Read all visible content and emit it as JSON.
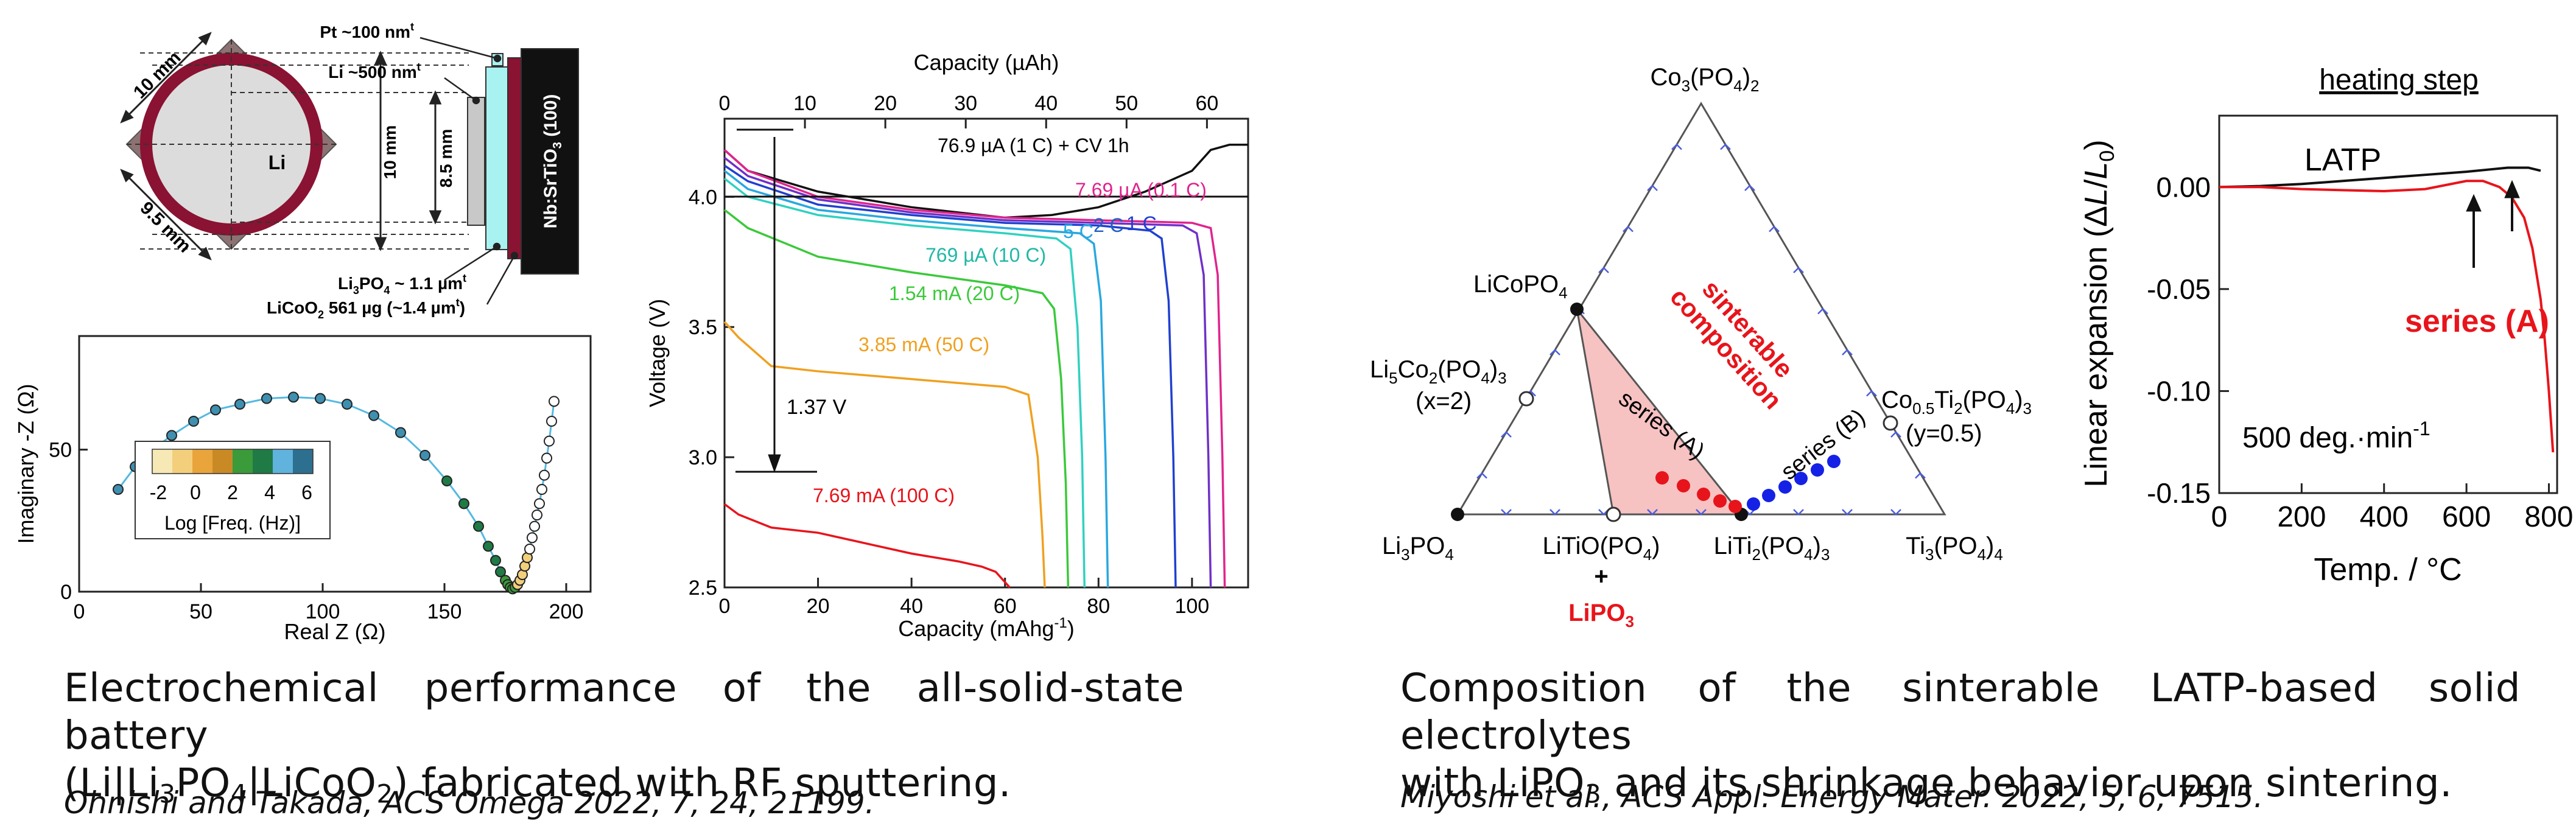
{
  "panel_a": {
    "pt_label": "Pt ~100 nm",
    "pt_sup": "t",
    "li_thick_label": "Li ~500 nm",
    "li_thick_sup": "t",
    "dim_10mm_top": "10 mm",
    "dim_9_5mm": "9.5 mm",
    "li_center": "Li",
    "dim_10mm_side": "10 mm",
    "dim_8_5mm": "8.5 mm",
    "substrate_label": "Nb:SrTiO",
    "substrate_sub": "3",
    "substrate_suffix": " (100)",
    "lipo_label_a": "Li",
    "lipo_label_sub1": "3",
    "lipo_label_b": "PO",
    "lipo_label_sub2": "4",
    "lipo_label_c": " ~ 1.1 µm",
    "lipo_label_sup": "t",
    "licoo_a": "LiCoO",
    "licoo_sub": "2",
    "licoo_b": " 561 µg (~1.4 µm",
    "licoo_sup": "t",
    "licoo_c": ")"
  },
  "nyquist": {
    "ylabel": "Imaginary -Z  (Ω)",
    "xlabel": "Real Z (Ω)",
    "legend_title": "Log [Freq. (Hz)]",
    "legend_ticks": [
      "-2",
      "0",
      "2",
      "4",
      "6"
    ],
    "legend_colors": [
      "#f6e9b5",
      "#f3cf7c",
      "#e9a43c",
      "#c98a26",
      "#3b9a3a",
      "#1f7a45",
      "#5fb3dd",
      "#2d6f8f"
    ],
    "marker_color": "#3f8fb0",
    "fit_color": "#55b9e0"
  },
  "discharge": {
    "top_xlabel": "Capacity (µAh)",
    "xlabel_a": "Capacity (mAhg",
    "xlabel_sup": "-1",
    "xlabel_c": ")",
    "ylabel": "Voltage (V)",
    "ann_cv": "76.9 µA (1 C) + CV 1h",
    "ann_01c": "7.69 µA (0.1 C)",
    "ann_5c": "5 C",
    "ann_2c": "2 C",
    "ann_1c": "1 C",
    "ann_10c": "769 µA (10 C)",
    "ann_20c": "1.54 mA (20 C)",
    "ann_50c": "3.85 mA (50 C)",
    "ann_100c": "7.69 mA (100 C)",
    "ann_drop": "1.37 V"
  },
  "ternary": {
    "vertex_top_a": "Co",
    "vertex_top_sub1": "3",
    "vertex_top_b": "(PO",
    "vertex_top_sub2": "4",
    "vertex_top_c": ")",
    "vertex_top_sub3": "2",
    "licopo4_a": "LiCoPO",
    "licopo4_sub": "4",
    "li5co2_a": "Li",
    "li5co2_sub1": "5",
    "li5co2_b": "Co",
    "li5co2_sub2": "2",
    "li5co2_c": "(PO",
    "li5co2_sub3": "4",
    "li5co2_d": ")",
    "li5co2_sub4": "3",
    "li5co2_x": "(x=2)",
    "co05_a": "Co",
    "co05_sub1": "0.5",
    "co05_b": "Ti",
    "co05_sub2": "2",
    "co05_c": "(PO",
    "co05_sub3": "4",
    "co05_d": ")",
    "co05_sub4": "3",
    "co05_y": "(y=0.5)",
    "li3po4_a": "Li",
    "li3po4_sub1": "3",
    "li3po4_b": "PO",
    "li3po4_sub2": "4",
    "litio_a": "LiTiO(PO",
    "litio_sub": "4",
    "litio_b": ")",
    "plus": "+",
    "lipo3_a": "LiPO",
    "lipo3_sub": "3",
    "liti2_a": "LiTi",
    "liti2_sub1": "2",
    "liti2_b": "(PO",
    "liti2_sub2": "4",
    "liti2_c": ")",
    "liti2_sub3": "3",
    "ti3_a": "Ti",
    "ti3_sub1": "3",
    "ti3_b": "(PO",
    "ti3_sub2": "4",
    "ti3_c": ")",
    "ti3_sub3": "4",
    "sinterable_1": "sinterable",
    "sinterable_2": "composition",
    "series_a": "series (A)",
    "series_b": "series (B)",
    "color_region": "#f7c2c2",
    "color_red": "#e8141b",
    "color_blue": "#1621e6",
    "color_tick": "#4a5ee0"
  },
  "dilatometry": {
    "heading": "heating step",
    "ylabel_a": "Linear expansion  (Δ",
    "ylabel_L": "L",
    "ylabel_b": "/",
    "ylabel_L0": "L",
    "ylabel_sub": "0",
    "ylabel_c": ")",
    "xlabel": "Temp. / °C",
    "latp_label": "LATP",
    "series_a_label": "series (A)",
    "rate_a": "500 deg.·min",
    "rate_sup": "-1",
    "color_red": "#e8141b"
  },
  "captions": {
    "left_line1": "Electrochemical performance of the all-solid-state battery",
    "left_line2_a": "(Li|Li",
    "left_line2_sub1": "3",
    "left_line2_b": "PO",
    "left_line2_sub2": "4",
    "left_line2_c": "|LiCoO",
    "left_line2_sub3": "2",
    "left_line2_d": ") fabricated with RF sputtering.",
    "left_cite": "Ohnishi and Takada, ACS Omega 2022, 7, 24, 21199.",
    "right_line1": "Composition of the sinterable LATP-based solid electrolytes",
    "right_line2_a": "with LiPO",
    "right_line2_sub": "3",
    "right_line2_b": " and its shrinkage behavior upon sintering.",
    "right_cite": "Miyoshi et al., ACS Appl. Energy Mater. 2022, 5, 6, 7515."
  },
  "chart_data": [
    {
      "type": "scatter",
      "name_hint": "nyquist",
      "xlabel": "Real Z (Ω)",
      "ylabel": "Imaginary -Z  (Ω)",
      "xlim": [
        0,
        210
      ],
      "ylim": [
        0,
        90
      ],
      "xticks": [
        0,
        50,
        100,
        150,
        200
      ],
      "yticks": [
        0,
        50
      ],
      "legend": "inset-left",
      "x": [
        16,
        23,
        30,
        38,
        47,
        56,
        66,
        77,
        88,
        99,
        110,
        121,
        132,
        142,
        151,
        158,
        164,
        168,
        171,
        173,
        175,
        176,
        177,
        178,
        179,
        180,
        181,
        182,
        183,
        184,
        185,
        186,
        187,
        188,
        189,
        190,
        191,
        192,
        193,
        194,
        195
      ],
      "y": [
        36,
        44,
        50,
        55,
        60,
        64,
        66,
        68,
        68.5,
        68,
        66,
        62,
        56,
        48,
        39,
        31,
        23,
        16,
        11,
        7,
        4,
        2.5,
        1.5,
        1,
        1.5,
        2.5,
        4,
        6,
        9,
        12,
        15,
        19,
        23,
        27,
        31,
        36,
        41,
        47,
        53,
        60,
        67
      ]
    },
    {
      "type": "line",
      "name_hint": "discharge",
      "xlabel": "Capacity (mAhg-1)",
      "ylabel": "Voltage (V)",
      "top_xlabel": "Capacity (µAh)",
      "xlim": [
        0,
        112
      ],
      "ylim": [
        2.5,
        4.3
      ],
      "xticks": [
        0,
        20,
        40,
        60,
        80,
        100
      ],
      "yticks": [
        2.5,
        3.0,
        3.5,
        4.0
      ],
      "top_xticks": [
        0,
        10,
        20,
        30,
        40,
        50,
        60
      ],
      "series": [
        {
          "name": "76.9 µA (1 C) + CV 1h",
          "color": "#111111",
          "x": [
            0,
            5,
            20,
            40,
            50,
            60,
            70,
            80,
            90,
            95,
            100,
            104,
            108,
            112
          ],
          "y": [
            4.18,
            4.1,
            4.02,
            3.96,
            3.94,
            3.92,
            3.93,
            3.96,
            4.02,
            4.06,
            4.1,
            4.18,
            4.2,
            4.2
          ]
        },
        {
          "name": "7.69 µA (0.1 C)",
          "color": "#e0248d",
          "x": [
            0,
            5,
            20,
            40,
            60,
            80,
            100,
            104,
            105.5,
            106.5,
            107
          ],
          "y": [
            4.18,
            4.1,
            4.0,
            3.95,
            3.92,
            3.91,
            3.9,
            3.88,
            3.7,
            3.0,
            2.5
          ]
        },
        {
          "name": "1 C",
          "color": "#7030c8",
          "x": [
            0,
            5,
            20,
            40,
            60,
            80,
            98,
            101,
            102.5,
            103.5,
            104
          ],
          "y": [
            4.15,
            4.08,
            3.99,
            3.94,
            3.91,
            3.9,
            3.89,
            3.86,
            3.7,
            3.0,
            2.5
          ]
        },
        {
          "name": "2 C",
          "color": "#2040d0",
          "x": [
            0,
            5,
            20,
            40,
            60,
            80,
            91,
            93.5,
            95,
            96,
            96.5
          ],
          "y": [
            4.12,
            4.06,
            3.97,
            3.93,
            3.9,
            3.89,
            3.87,
            3.84,
            3.6,
            3.0,
            2.5
          ]
        },
        {
          "name": "5 C",
          "color": "#29a8e0",
          "x": [
            0,
            5,
            20,
            40,
            60,
            76,
            79,
            80.5,
            81.5,
            82
          ],
          "y": [
            4.1,
            4.03,
            3.95,
            3.91,
            3.88,
            3.86,
            3.82,
            3.6,
            3.0,
            2.5
          ]
        },
        {
          "name": "769 µA (10 C)",
          "color": "#2fd1c0",
          "x": [
            0,
            5,
            20,
            40,
            60,
            71,
            74,
            75.5,
            76.5,
            77
          ],
          "y": [
            4.07,
            4.0,
            3.93,
            3.89,
            3.86,
            3.84,
            3.8,
            3.5,
            3.0,
            2.5
          ]
        },
        {
          "name": "1.54 mA (20 C)",
          "color": "#3bc93b",
          "x": [
            0,
            5,
            20,
            40,
            60,
            68,
            70.5,
            72,
            73,
            73.5
          ],
          "y": [
            3.95,
            3.88,
            3.77,
            3.71,
            3.66,
            3.63,
            3.57,
            3.3,
            2.9,
            2.5
          ]
        },
        {
          "name": "3.85 mA (50 C)",
          "color": "#f0a020",
          "x": [
            0,
            3,
            10,
            20,
            40,
            60,
            65,
            67,
            68,
            68.5
          ],
          "y": [
            3.52,
            3.46,
            3.35,
            3.33,
            3.3,
            3.27,
            3.24,
            3.0,
            2.7,
            2.5
          ]
        },
        {
          "name": "7.69 mA (100 C)",
          "color": "#e8141b",
          "x": [
            0,
            3,
            10,
            20,
            30,
            40,
            50,
            55,
            58,
            60,
            61
          ],
          "y": [
            2.82,
            2.78,
            2.73,
            2.71,
            2.67,
            2.63,
            2.6,
            2.58,
            2.56,
            2.52,
            2.5
          ]
        }
      ]
    },
    {
      "type": "line",
      "name_hint": "dilatometry",
      "xlabel": "Temp. / °C",
      "ylabel": "Linear expansion  (ΔL/L0)",
      "xlim": [
        0,
        820
      ],
      "ylim": [
        -0.15,
        0.035
      ],
      "xticks": [
        0,
        200,
        400,
        600,
        800
      ],
      "yticks": [
        0.0,
        -0.05,
        -0.1,
        -0.15
      ],
      "series": [
        {
          "name": "LATP",
          "color": "#111111",
          "x": [
            0,
            100,
            200,
            300,
            400,
            500,
            600,
            650,
            700,
            750,
            780
          ],
          "y": [
            0.0,
            0.0005,
            0.0015,
            0.003,
            0.0045,
            0.006,
            0.0075,
            0.0085,
            0.0095,
            0.0095,
            0.008
          ]
        },
        {
          "name": "series (A)",
          "color": "#e8141b",
          "x": [
            0,
            100,
            200,
            300,
            400,
            500,
            600,
            640,
            680,
            710,
            740,
            760,
            780,
            790,
            800,
            810
          ],
          "y": [
            0.0,
            0.0,
            -0.001,
            -0.0015,
            -0.002,
            -0.001,
            0.003,
            0.003,
            0.0,
            -0.005,
            -0.015,
            -0.03,
            -0.055,
            -0.075,
            -0.1,
            -0.13
          ]
        }
      ]
    }
  ]
}
